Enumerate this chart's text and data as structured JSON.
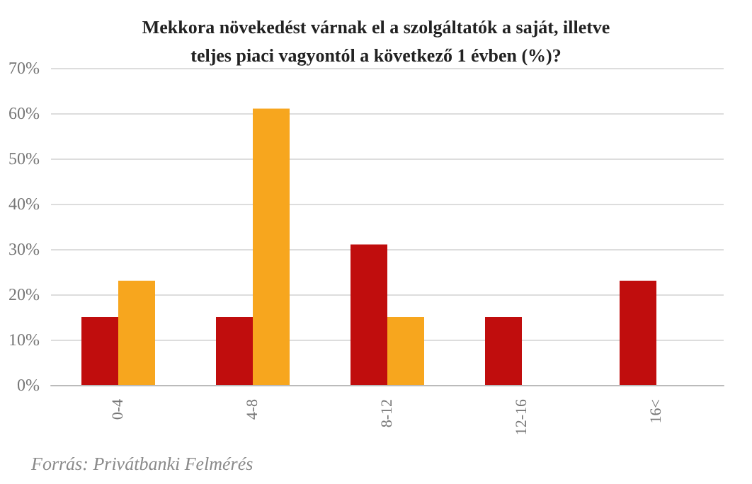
{
  "chart_data": {
    "type": "bar",
    "title": "Mekkora növekedést várnak el a szolgáltatók a saját, illetve\nteljes piaci vagyontól a következő 1 évben (%)?",
    "categories": [
      "0-4",
      "4-8",
      "8-12",
      "12-16",
      "16<"
    ],
    "series": [
      {
        "color": "#c00d0d",
        "values": [
          15,
          15,
          31,
          15,
          23
        ]
      },
      {
        "color": "#f7a61e",
        "values": [
          23,
          61,
          15,
          null,
          null
        ]
      }
    ],
    "ylim": [
      0,
      70
    ],
    "yticks": [
      {
        "value": 0,
        "label": "0%"
      },
      {
        "value": 10,
        "label": "10%"
      },
      {
        "value": 20,
        "label": "20%"
      },
      {
        "value": 30,
        "label": "30%"
      },
      {
        "value": 40,
        "label": "40%"
      },
      {
        "value": 50,
        "label": "50%"
      },
      {
        "value": 60,
        "label": "60%"
      },
      {
        "value": 70,
        "label": "70%"
      }
    ],
    "grid": "y",
    "annotations": [
      "Forrás: Privátbanki Felmérés"
    ]
  }
}
